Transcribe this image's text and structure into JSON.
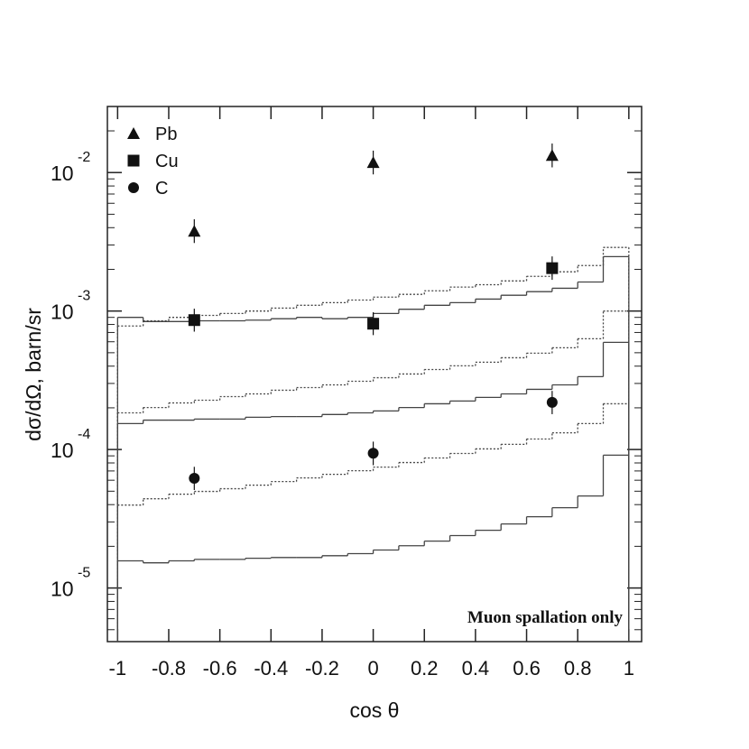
{
  "chart_data": {
    "type": "scatter",
    "xlabel": "cos θ",
    "ylabel": "dσ/dΩ, barn/sr",
    "annotation": "Muon spallation only",
    "log_y": true,
    "xlim": [
      -1.04,
      1.05
    ],
    "ylim": [
      4.1e-06,
      0.03
    ],
    "xticks": [
      -1,
      -0.8,
      -0.6,
      -0.4,
      -0.2,
      0,
      0.2,
      0.4,
      0.6,
      0.8,
      1
    ],
    "yticks": [
      {
        "value": 0.01,
        "label": "10",
        "exponent": "-2"
      },
      {
        "value": 0.001,
        "label": "10",
        "exponent": "-3"
      },
      {
        "value": 0.0001,
        "label": "10",
        "exponent": "-4"
      },
      {
        "value": 1e-05,
        "label": "10",
        "exponent": "-5"
      }
    ],
    "legend": "upper left",
    "x": [
      -0.7,
      0,
      0.7
    ],
    "series": [
      {
        "name": "Pb",
        "marker": "triangle",
        "color": "#111111",
        "values": [
          0.00377,
          0.0118,
          0.0133
        ],
        "lower": [
          0.0031,
          0.0097,
          0.0109
        ],
        "upper": [
          0.0046,
          0.0144,
          0.0162
        ]
      },
      {
        "name": "Cu",
        "marker": "square",
        "color": "#111111",
        "values": [
          0.00086,
          0.00081,
          0.00204
        ],
        "lower": [
          0.00071,
          0.00067,
          0.00168
        ],
        "upper": [
          0.00104,
          0.00098,
          0.00248
        ]
      },
      {
        "name": "C",
        "marker": "circle",
        "color": "#111111",
        "values": [
          6.2e-05,
          9.4e-05,
          0.000219
        ],
        "lower": [
          5.1e-05,
          7.7e-05,
          0.00018
        ],
        "upper": [
          7.5e-05,
          0.000114,
          0.000265
        ]
      }
    ],
    "bins": [
      -1,
      -0.9,
      -0.8,
      -0.7,
      -0.6,
      -0.5,
      -0.4,
      -0.3,
      -0.2,
      -0.1,
      0,
      0.1,
      0.2,
      0.3,
      0.4,
      0.5,
      0.6,
      0.7,
      0.8,
      0.9,
      1
    ],
    "histograms": [
      {
        "style": "solid",
        "color": "#444444",
        "values": [
          0.0009,
          0.00084,
          0.00084,
          0.00085,
          0.00085,
          0.00086,
          0.00088,
          0.0009,
          0.00088,
          0.0009,
          0.00096,
          0.00103,
          0.0011,
          0.00115,
          0.00122,
          0.0013,
          0.00138,
          0.00146,
          0.00162,
          0.00247
        ]
      },
      {
        "style": "dotted",
        "color": "#444444",
        "values": [
          0.00078,
          0.00085,
          0.0009,
          0.00093,
          0.00096,
          0.001,
          0.00105,
          0.0011,
          0.00115,
          0.0012,
          0.00126,
          0.00132,
          0.0014,
          0.00149,
          0.00155,
          0.00165,
          0.00178,
          0.00192,
          0.00213,
          0.00288
        ]
      },
      {
        "style": "solid",
        "color": "#444444",
        "values": [
          0.000154,
          0.000163,
          0.000163,
          0.000166,
          0.000166,
          0.000171,
          0.000173,
          0.000173,
          0.000179,
          0.000184,
          0.00019,
          0.000201,
          0.000214,
          0.000224,
          0.000238,
          0.000252,
          0.000272,
          0.000293,
          0.000336,
          0.000594
        ]
      },
      {
        "style": "dotted",
        "color": "#444444",
        "values": [
          0.000184,
          0.000201,
          0.000217,
          0.000227,
          0.000241,
          0.000252,
          0.000268,
          0.00028,
          0.000293,
          0.000311,
          0.00033,
          0.000351,
          0.000378,
          0.000402,
          0.000427,
          0.00046,
          0.000496,
          0.000543,
          0.000631,
          0.001
        ]
      },
      {
        "style": "solid",
        "color": "#444444",
        "values": [
          1.57e-05,
          1.52e-05,
          1.57e-05,
          1.61e-05,
          1.61e-05,
          1.64e-05,
          1.66e-05,
          1.66e-05,
          1.71e-05,
          1.77e-05,
          1.88e-05,
          2.02e-05,
          2.18e-05,
          2.39e-05,
          2.61e-05,
          2.9e-05,
          3.27e-05,
          3.8e-05,
          4.62e-05,
          9.1e-05
        ]
      },
      {
        "style": "dotted",
        "color": "#444444",
        "values": [
          3.97e-05,
          4.41e-05,
          4.76e-05,
          4.98e-05,
          5.21e-05,
          5.53e-05,
          5.87e-05,
          6.24e-05,
          6.62e-05,
          7.03e-05,
          7.46e-05,
          8.05e-05,
          8.69e-05,
          9.36e-05,
          0.000101,
          0.000109,
          0.000119,
          0.000132,
          0.000154,
          0.000214
        ]
      }
    ]
  }
}
